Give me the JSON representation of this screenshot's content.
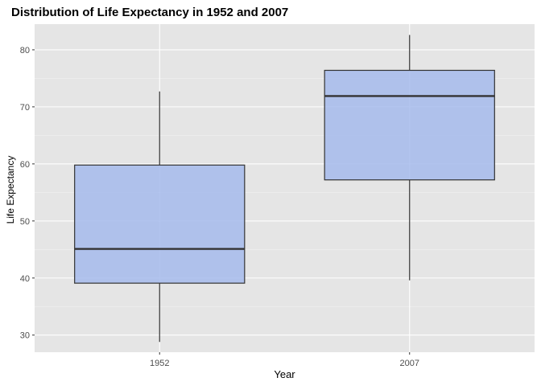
{
  "chart_data": {
    "type": "boxplot",
    "title": "Distribution of Life Expectancy in 1952 and 2007",
    "xlabel": "Year",
    "ylabel": "Life Expectancy",
    "categories": [
      "1952",
      "2007"
    ],
    "boxes": [
      {
        "category": "1952",
        "whisker_low": 28.8,
        "q1": 39.1,
        "median": 45.1,
        "q3": 59.8,
        "whisker_high": 72.7
      },
      {
        "category": "2007",
        "whisker_low": 39.6,
        "q1": 57.2,
        "median": 71.9,
        "q3": 76.4,
        "whisker_high": 82.6
      }
    ],
    "ylim": [
      27.0,
      84.5
    ],
    "yticks": [
      30,
      40,
      50,
      60,
      70,
      80
    ],
    "grid": true,
    "colors": {
      "panel_background": "#e5e5e5",
      "grid_major": "#ffffff",
      "grid_minor": "#f2f2f2",
      "box_fill": "#a6bbec",
      "box_stroke": "#333333"
    }
  }
}
